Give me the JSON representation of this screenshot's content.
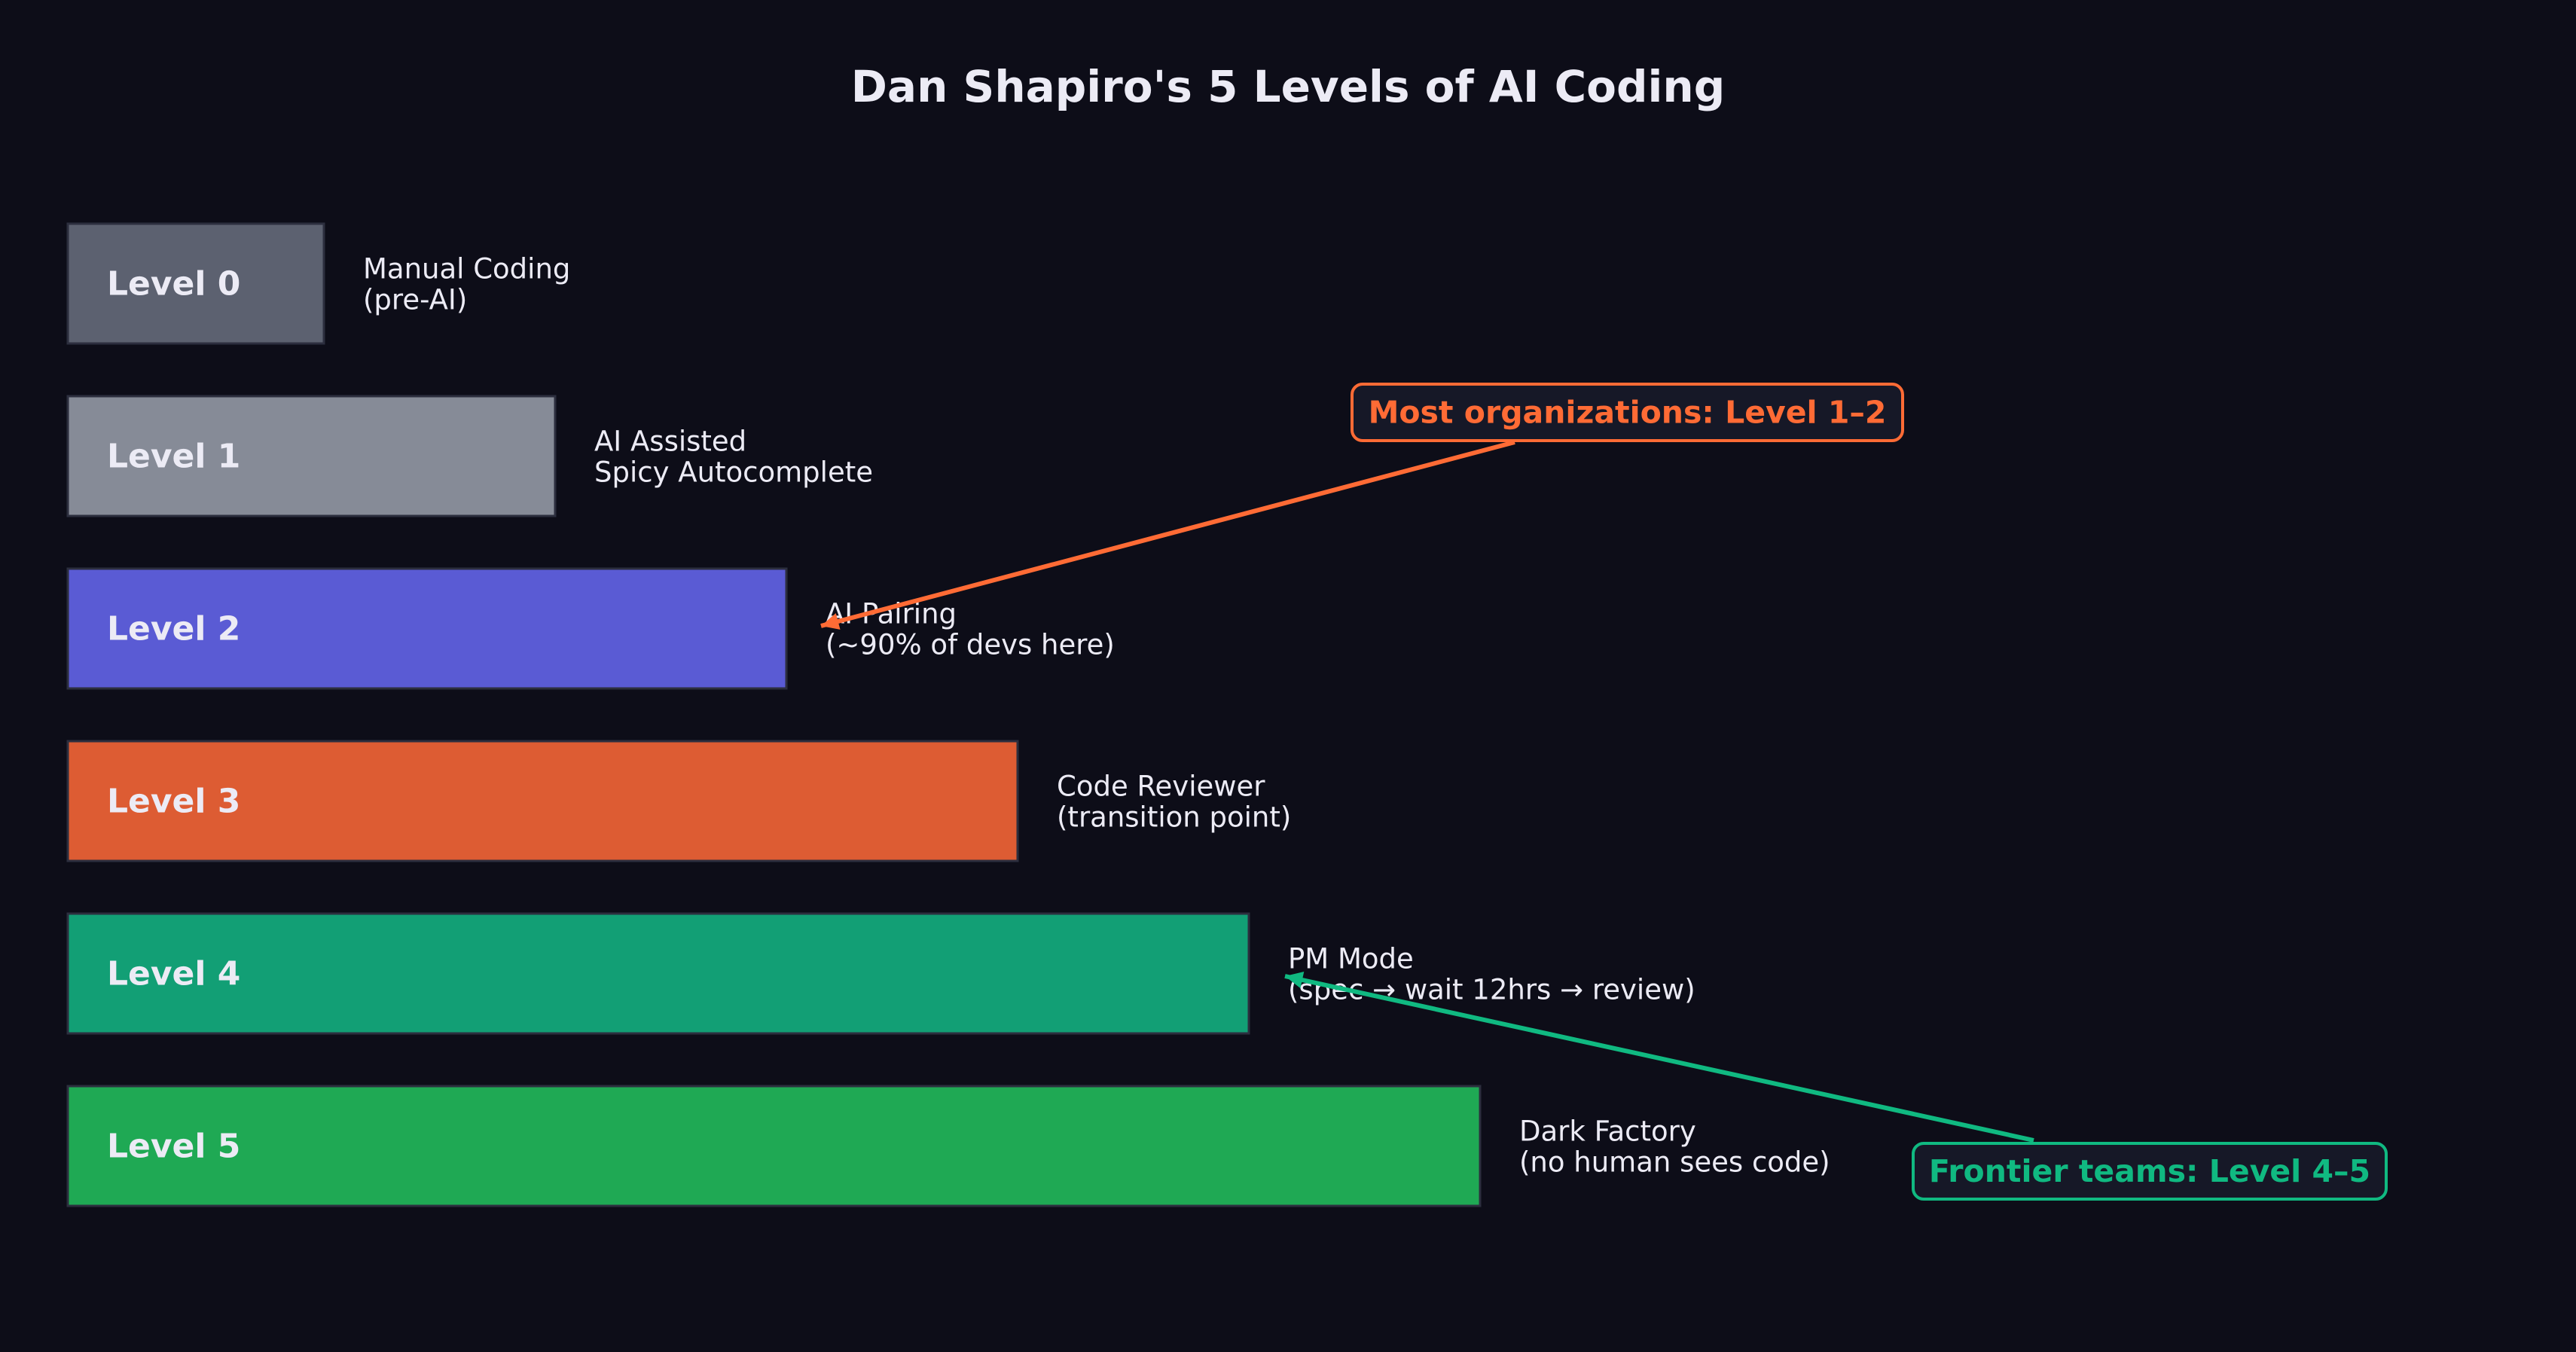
{
  "chart_data": {
    "type": "bar",
    "orientation": "horizontal",
    "title": "Dan Shapiro's 5 Levels of AI Coding",
    "categories": [
      "Level 0",
      "Level 1",
      "Level 2",
      "Level 3",
      "Level 4",
      "Level 5"
    ],
    "values": [
      1,
      2,
      3,
      4,
      5,
      6
    ],
    "descriptions": [
      [
        "Manual Coding",
        "(pre-AI)"
      ],
      [
        "AI Assisted",
        "Spicy Autocomplete"
      ],
      [
        "AI Pairing",
        "(~90% of devs here)"
      ],
      [
        "Code Reviewer",
        "(transition point)"
      ],
      [
        "PM Mode",
        "(spec → wait 12hrs → review)"
      ],
      [
        "Dark Factory",
        "(no human sees code)"
      ]
    ],
    "colors": [
      "#5c6170",
      "#868b97",
      "#5a5bd4",
      "#dd5c33",
      "#129f75",
      "#1fa954"
    ],
    "annotations": [
      {
        "text": "Most organizations: Level 1–2",
        "target_level": 2,
        "color": "#ff6b35"
      },
      {
        "text": "Frontier teams: Level 4–5",
        "target_level": 4,
        "color": "#10b981"
      }
    ],
    "xlabel": "",
    "ylabel": "",
    "grid": false
  }
}
